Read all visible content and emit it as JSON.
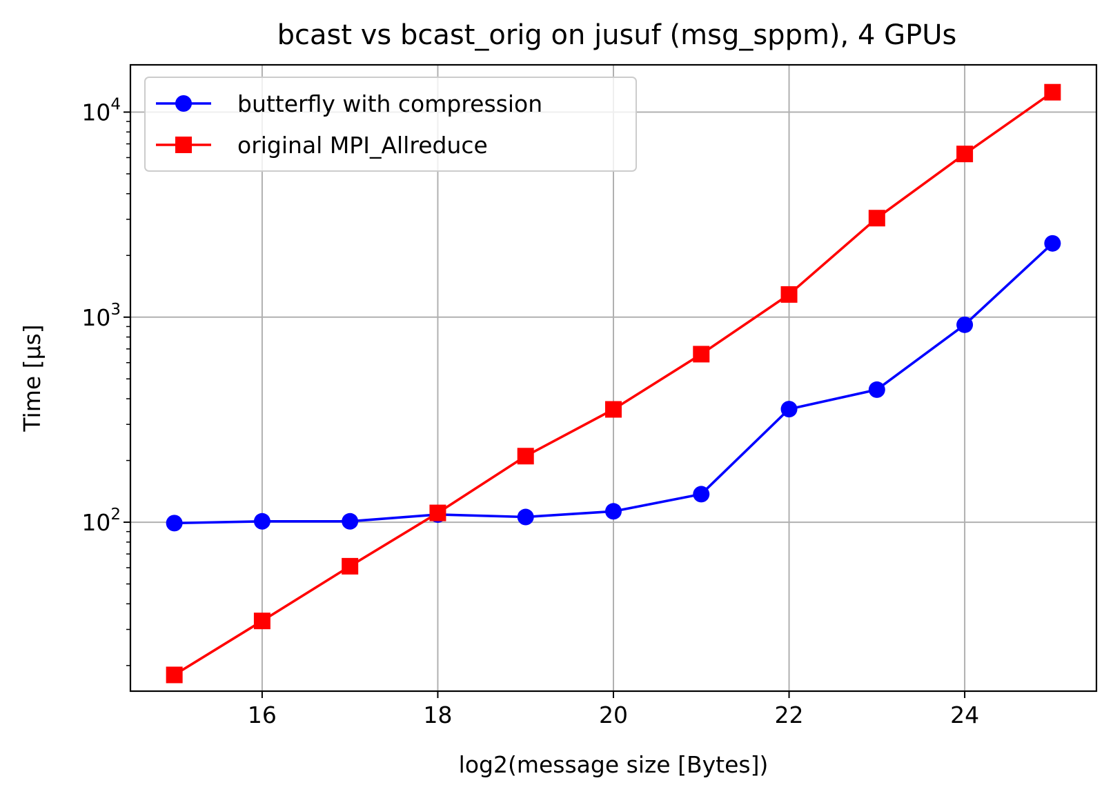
{
  "chart_data": {
    "type": "line",
    "title": "bcast vs bcast_orig on jusuf (msg_sppm), 4 GPUs",
    "xlabel": "log2(message size [Bytes])",
    "ylabel": "Time [µs]",
    "xlim": [
      14.5,
      25.5
    ],
    "ylim": [
      15,
      17000
    ],
    "yscale": "log",
    "grid": true,
    "legend_position": "top-left",
    "x_ticks": [
      16,
      18,
      20,
      22,
      24
    ],
    "y_ticks": [
      {
        "base": "10",
        "exp": "2",
        "value": 100
      },
      {
        "base": "10",
        "exp": "3",
        "value": 1000
      },
      {
        "base": "10",
        "exp": "4",
        "value": 10000
      }
    ],
    "x": [
      15,
      16,
      17,
      18,
      19,
      20,
      21,
      22,
      23,
      24,
      25
    ],
    "series": [
      {
        "name": "butterfly with compression",
        "color": "#0000ff",
        "marker": "circle",
        "values": [
          99,
          101,
          101,
          109,
          106,
          113,
          137,
          356,
          443,
          918,
          2290
        ]
      },
      {
        "name": "original MPI_Allreduce",
        "color": "#ff0000",
        "marker": "square",
        "values": [
          18,
          33,
          61,
          111,
          210,
          355,
          660,
          1290,
          3040,
          6250,
          12500
        ]
      }
    ]
  }
}
